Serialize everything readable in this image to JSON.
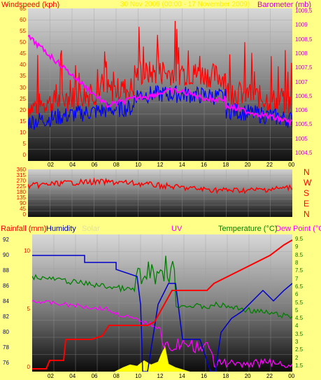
{
  "top": {
    "left_title": "Windspeed (kph)",
    "center_title": "30 Nov 2009 (00:00 - 17 November 2009)",
    "right_title": "Barometer (mb)",
    "left_ticks": [
      "65",
      "60",
      "55",
      "50",
      "45",
      "40",
      "35",
      "30",
      "25",
      "20",
      "15",
      "10",
      "5",
      "0"
    ],
    "right_ticks": [
      "1009,5",
      "1009",
      "1008,5",
      "1008",
      "1007,5",
      "1007",
      "1006,5",
      "1006",
      "1005,5",
      "1005",
      "1004,5"
    ],
    "x_ticks": [
      "02",
      "04",
      "06",
      "08",
      "10",
      "12",
      "14",
      "16",
      "18",
      "20",
      "22",
      "00"
    ]
  },
  "mid": {
    "left_ticks": [
      "360",
      "315",
      "270",
      "225",
      "180",
      "135",
      "90",
      "45",
      "0"
    ],
    "compass": [
      "N",
      "W",
      "S",
      "E",
      "N"
    ]
  },
  "bottom": {
    "titles": {
      "rainfall": "Rainfall (mm)",
      "humidity": "Humidity",
      "solar": "Solar",
      "uv": "UV",
      "temperature": "Temperature (°C)",
      "dewpoint": "Dew Point (°C)"
    },
    "humidity_ticks": [
      "92",
      "90",
      "88",
      "86",
      "84",
      "82",
      "80",
      "78",
      "76"
    ],
    "rain_ticks": [
      "10",
      "5",
      "0"
    ],
    "temp_ticks": [
      "9.5",
      "9",
      "8.5",
      "8",
      "7.5",
      "7",
      "6.5",
      "6",
      "5.5",
      "5",
      "4.5",
      "4",
      "3.5",
      "3",
      "2.5",
      "2",
      "1.5"
    ],
    "x_ticks": [
      "02",
      "04",
      "06",
      "08",
      "10",
      "12",
      "14",
      "16",
      "18",
      "20",
      "22",
      "00"
    ]
  },
  "colors": {
    "background": "#ffff88",
    "windspeed": "#ff0000",
    "gust": "#0000ff",
    "barometer": "#ff00ff",
    "rain": "#ff0000",
    "humidity": "#0000aa",
    "temperature": "#008000",
    "dewpoint": "#ff00ff",
    "solar": "#ffff00"
  }
}
